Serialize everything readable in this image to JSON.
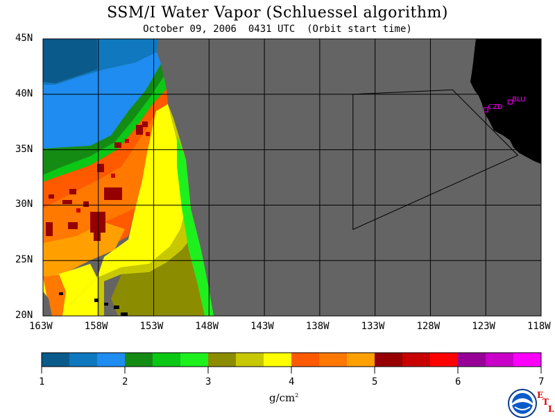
{
  "title": "SSM/I Water Vapor (Schluessel algorithm)",
  "subtitle": "October 09, 2006  0431 UTC  (Orbit start time)",
  "map": {
    "lon_range": [
      -163,
      -118
    ],
    "lat_range": [
      20,
      45
    ],
    "lat_labels": [
      "45N",
      "40N",
      "35N",
      "30N",
      "25N",
      "20N"
    ],
    "lat_values": [
      45,
      40,
      35,
      30,
      25,
      20
    ],
    "lon_labels": [
      "163W",
      "158W",
      "153W",
      "148W",
      "143W",
      "138W",
      "133W",
      "128W",
      "123W",
      "118W"
    ],
    "lon_values": [
      -163,
      -158,
      -153,
      -148,
      -143,
      -138,
      -133,
      -128,
      -123,
      -118
    ],
    "no_data_color": "#646464",
    "land_color": "#000000",
    "grid_color": "#000000",
    "stations": [
      {
        "id": "CZD",
        "lon": -123.0,
        "lat": 38.6,
        "color": "#ff00ff"
      },
      {
        "id": "BLU",
        "lon": -120.8,
        "lat": 39.3,
        "color": "#ff00ff"
      }
    ],
    "domain_outline": [
      {
        "lon": -135.0,
        "lat": 40.0
      },
      {
        "lon": -135.0,
        "lat": 27.8
      },
      {
        "lon": -120.1,
        "lat": 34.5
      }
    ]
  },
  "colorbar": {
    "min": 1,
    "max": 7,
    "tick_labels": [
      "1",
      "2",
      "3",
      "4",
      "5",
      "6",
      "7"
    ],
    "colors": [
      "#0a5a8c",
      "#0f78be",
      "#1e8cf0",
      "#148c14",
      "#0ac814",
      "#1ef01e",
      "#8c8c00",
      "#c8c800",
      "#ffff00",
      "#ff5a00",
      "#ff7800",
      "#ffa000",
      "#960000",
      "#c80000",
      "#ff0000",
      "#960096",
      "#c800c8",
      "#ff00ff"
    ],
    "units": "g/cm",
    "units_exponent": "2"
  },
  "logo": {
    "name": "NOAA",
    "mark_letters": [
      "E",
      "T",
      "L"
    ]
  }
}
